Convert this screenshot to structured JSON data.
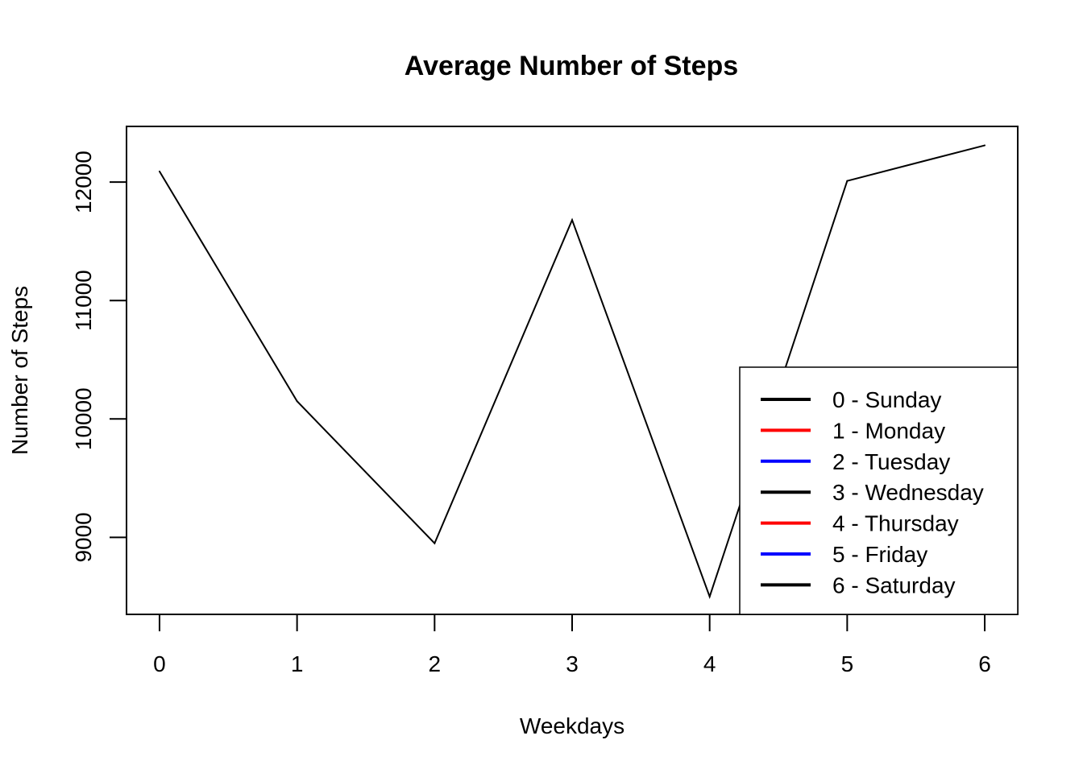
{
  "chart_data": {
    "type": "line",
    "title": "Average Number of Steps",
    "xlabel": "Weekdays",
    "ylabel": "Number of Steps",
    "x": [
      0,
      1,
      2,
      3,
      4,
      5,
      6
    ],
    "series": [
      {
        "values": [
          12090,
          10150,
          8950,
          11680,
          8500,
          12010,
          12310
        ],
        "color": "#000000"
      }
    ],
    "x_ticks": [
      "0",
      "1",
      "2",
      "3",
      "4",
      "5",
      "6"
    ],
    "y_ticks": [
      "9000",
      "10000",
      "11000",
      "12000"
    ],
    "xlim": [
      -0.24,
      6.24
    ],
    "ylim": [
      8350,
      12470
    ],
    "grid": false,
    "legend": {
      "placement": "bottom-right",
      "entries": [
        {
          "label": "0 - Sunday",
          "color": "#000000"
        },
        {
          "label": "1 - Monday",
          "color": "#ff0000"
        },
        {
          "label": "2 - Tuesday",
          "color": "#0000ff"
        },
        {
          "label": "3 - Wednesday",
          "color": "#000000"
        },
        {
          "label": "4 - Thursday",
          "color": "#ff0000"
        },
        {
          "label": "5 - Friday",
          "color": "#0000ff"
        },
        {
          "label": "6 - Saturday",
          "color": "#000000"
        }
      ]
    }
  }
}
